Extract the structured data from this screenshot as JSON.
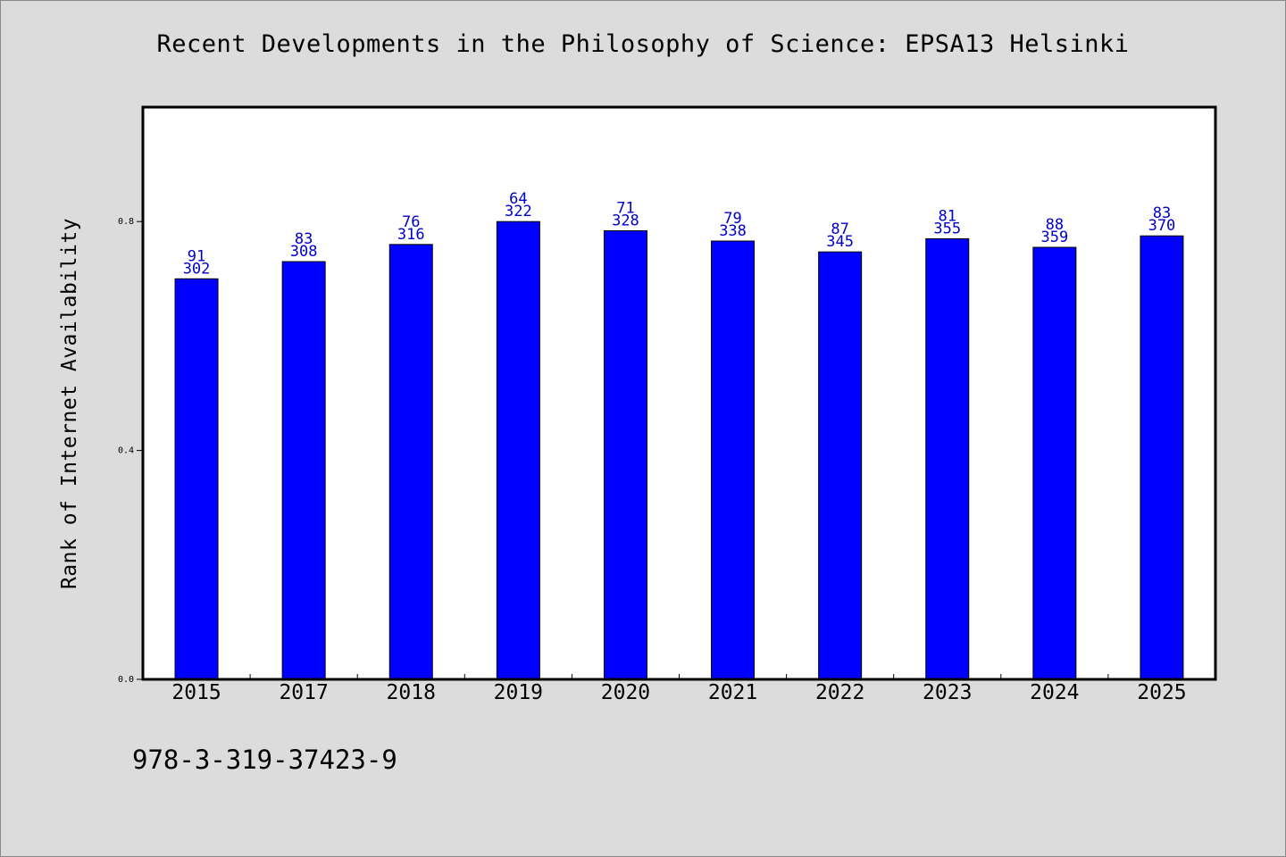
{
  "title": "Recent Developments in the Philosophy of Science: EPSA13 Helsinki",
  "footer_text": "978-3-319-37423-9",
  "colors": {
    "background": "#dcdcdc",
    "plot_background": "#ffffff",
    "bar": "#0000ff",
    "label": "#0000cc"
  },
  "chart_data": {
    "type": "bar",
    "ylabel": "Rank of Internet Availability",
    "xlabel": "",
    "categories": [
      "2015",
      "2017",
      "2018",
      "2019",
      "2020",
      "2021",
      "2022",
      "2023",
      "2024",
      "2025"
    ],
    "values": [
      0.7,
      0.73,
      0.76,
      0.8,
      0.784,
      0.766,
      0.747,
      0.77,
      0.755,
      0.775
    ],
    "label_top": [
      91,
      83,
      76,
      64,
      71,
      79,
      87,
      81,
      88,
      83
    ],
    "label_bottom": [
      302,
      308,
      316,
      322,
      328,
      338,
      345,
      355,
      359,
      370
    ],
    "ylim": [
      0,
      1.0
    ],
    "yticks": [
      "0.0",
      "0.4",
      "0.8"
    ],
    "ytick_values": [
      0,
      0.4,
      0.8
    ],
    "grid": false,
    "legend": "none"
  }
}
